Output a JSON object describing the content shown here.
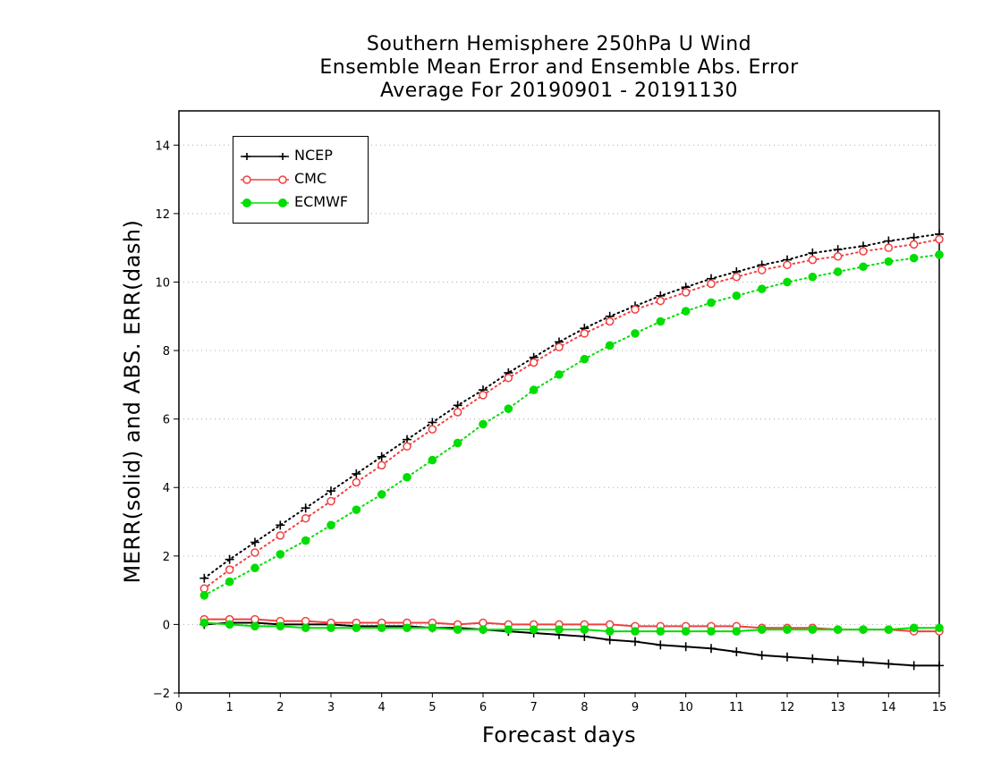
{
  "title": {
    "line1": "Southern Hemisphere 250hPa U Wind",
    "line2": "Ensemble Mean Error and Ensemble Abs. Error",
    "line3": "Average For 20190901 - 20191130"
  },
  "xlabel": "Forecast days",
  "ylabel": "MERR(solid) and ABS. ERR(dash)",
  "legend": [
    {
      "name": "NCEP",
      "color": "#000000",
      "marker": "plus"
    },
    {
      "name": "CMC",
      "color": "#f04040",
      "marker": "open-circle"
    },
    {
      "name": "ECMWF",
      "color": "#00dd00",
      "marker": "filled-circle"
    }
  ],
  "chart_data": {
    "type": "line",
    "xlim": [
      0,
      15
    ],
    "ylim": [
      -2,
      15
    ],
    "xticks": [
      0,
      1,
      2,
      3,
      4,
      5,
      6,
      7,
      8,
      9,
      10,
      11,
      12,
      13,
      14,
      15
    ],
    "yticks": [
      -2,
      0,
      2,
      4,
      6,
      8,
      10,
      12,
      14
    ],
    "grid": "horizontal dotted",
    "legend_position": "top-left",
    "x": [
      0.5,
      1,
      1.5,
      2,
      2.5,
      3,
      3.5,
      4,
      4.5,
      5,
      5.5,
      6,
      6.5,
      7,
      7.5,
      8,
      8.5,
      9,
      9.5,
      10,
      10.5,
      11,
      11.5,
      12,
      12.5,
      13,
      13.5,
      14,
      14.5,
      15
    ],
    "series": [
      {
        "name": "NCEP",
        "style": "dash",
        "color": "#000000",
        "marker": "plus",
        "values": [
          1.35,
          1.9,
          2.4,
          2.9,
          3.4,
          3.9,
          4.4,
          4.9,
          5.4,
          5.9,
          6.4,
          6.85,
          7.35,
          7.8,
          8.25,
          8.65,
          9.0,
          9.3,
          9.6,
          9.85,
          10.1,
          10.3,
          10.5,
          10.65,
          10.85,
          10.95,
          11.05,
          11.2,
          11.3,
          11.4
        ]
      },
      {
        "name": "CMC",
        "style": "dash",
        "color": "#f04040",
        "marker": "open-circle",
        "values": [
          1.05,
          1.6,
          2.1,
          2.6,
          3.1,
          3.6,
          4.15,
          4.65,
          5.2,
          5.7,
          6.2,
          6.7,
          7.2,
          7.65,
          8.1,
          8.5,
          8.85,
          9.2,
          9.45,
          9.7,
          9.95,
          10.15,
          10.35,
          10.5,
          10.65,
          10.75,
          10.9,
          11.0,
          11.1,
          11.25
        ]
      },
      {
        "name": "ECMWF",
        "style": "dash",
        "color": "#00dd00",
        "marker": "filled-circle",
        "values": [
          0.85,
          1.25,
          1.65,
          2.05,
          2.45,
          2.9,
          3.35,
          3.8,
          4.3,
          4.8,
          5.3,
          5.85,
          6.3,
          6.85,
          7.3,
          7.75,
          8.15,
          8.5,
          8.85,
          9.15,
          9.4,
          9.6,
          9.8,
          10.0,
          10.15,
          10.3,
          10.45,
          10.6,
          10.7,
          10.8
        ]
      },
      {
        "name": "NCEP",
        "style": "solid",
        "color": "#000000",
        "marker": "plus",
        "values": [
          0.0,
          0.05,
          0.05,
          0.0,
          0.0,
          0.0,
          -0.05,
          -0.05,
          -0.05,
          -0.1,
          -0.1,
          -0.15,
          -0.2,
          -0.25,
          -0.3,
          -0.35,
          -0.45,
          -0.5,
          -0.6,
          -0.65,
          -0.7,
          -0.8,
          -0.9,
          -0.95,
          -1.0,
          -1.05,
          -1.1,
          -1.15,
          -1.2,
          -1.2
        ]
      },
      {
        "name": "CMC",
        "style": "solid",
        "color": "#f04040",
        "marker": "open-circle",
        "values": [
          0.15,
          0.15,
          0.15,
          0.1,
          0.1,
          0.05,
          0.05,
          0.05,
          0.05,
          0.05,
          0.0,
          0.05,
          0.0,
          0.0,
          0.0,
          0.0,
          0.0,
          -0.05,
          -0.05,
          -0.05,
          -0.05,
          -0.05,
          -0.1,
          -0.1,
          -0.1,
          -0.15,
          -0.15,
          -0.15,
          -0.2,
          -0.2
        ]
      },
      {
        "name": "ECMWF",
        "style": "solid",
        "color": "#00dd00",
        "marker": "filled-circle",
        "values": [
          0.05,
          0.0,
          -0.05,
          -0.05,
          -0.1,
          -0.1,
          -0.1,
          -0.1,
          -0.1,
          -0.1,
          -0.15,
          -0.15,
          -0.15,
          -0.15,
          -0.15,
          -0.15,
          -0.2,
          -0.2,
          -0.2,
          -0.2,
          -0.2,
          -0.2,
          -0.15,
          -0.15,
          -0.15,
          -0.15,
          -0.15,
          -0.15,
          -0.1,
          -0.1
        ]
      }
    ]
  }
}
